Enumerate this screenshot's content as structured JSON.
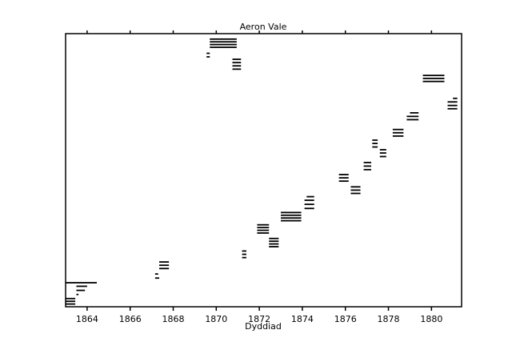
{
  "chart_data": {
    "type": "broken-barh",
    "title": "Aeron Vale",
    "xlabel": "Dyddiad",
    "xlim": [
      1863.0,
      1881.4
    ],
    "ylim": [
      0,
      100
    ],
    "xticks": [
      1864,
      1866,
      1868,
      1870,
      1872,
      1874,
      1876,
      1878,
      1880
    ],
    "color": "#000000",
    "starts": [
      1863.0,
      1863.0,
      1863.0,
      1863.0,
      1863.5,
      1863.5,
      1863.5,
      1867.16,
      1867.16,
      1867.35,
      1867.35,
      1867.35,
      1871.2,
      1871.2,
      1871.2,
      1871.9,
      1871.9,
      1871.9,
      1871.9,
      1872.45,
      1872.45,
      1872.45,
      1872.45,
      1873.0,
      1873.0,
      1873.0,
      1873.0,
      1874.1,
      1874.1,
      1874.1,
      1874.2,
      1875.7,
      1875.7,
      1875.7,
      1876.25,
      1876.25,
      1876.25,
      1876.85,
      1876.85,
      1876.85,
      1877.25,
      1877.25,
      1877.25,
      1877.6,
      1877.6,
      1877.6,
      1878.2,
      1878.2,
      1878.2,
      1878.85,
      1878.85,
      1879.0,
      1879.6,
      1879.6,
      1879.6,
      1880.75,
      1880.75,
      1880.75,
      1881.0,
      1869.7,
      1869.7,
      1869.7,
      1869.7,
      1869.55,
      1869.55,
      1870.75,
      1870.75,
      1870.75,
      1870.75
    ],
    "ends": [
      1863.45,
      1863.45,
      1863.45,
      1864.45,
      1864.0,
      1863.9,
      1863.6,
      1867.35,
      1867.3,
      1867.8,
      1867.8,
      1867.8,
      1871.4,
      1871.4,
      1871.4,
      1872.45,
      1872.45,
      1872.45,
      1872.45,
      1872.9,
      1872.9,
      1872.9,
      1872.9,
      1873.95,
      1873.95,
      1873.95,
      1873.95,
      1874.55,
      1874.55,
      1874.55,
      1874.55,
      1876.15,
      1876.15,
      1876.15,
      1876.7,
      1876.7,
      1876.7,
      1877.2,
      1877.2,
      1877.2,
      1877.5,
      1877.5,
      1877.5,
      1877.9,
      1877.9,
      1877.9,
      1878.7,
      1878.7,
      1878.7,
      1879.4,
      1879.4,
      1879.4,
      1880.6,
      1880.6,
      1880.6,
      1881.2,
      1881.2,
      1881.2,
      1881.2,
      1870.95,
      1870.95,
      1870.95,
      1870.95,
      1869.7,
      1869.7,
      1871.15,
      1871.15,
      1871.15,
      1871.15
    ],
    "y": [
      1,
      2,
      3,
      8.8,
      7.5,
      6,
      4.5,
      10.5,
      12,
      14,
      15.2,
      16.4,
      18,
      19.2,
      20.4,
      27,
      28,
      29,
      30,
      22,
      23,
      24,
      25,
      31.5,
      32.5,
      33.5,
      34.5,
      36,
      37.5,
      39,
      40.3,
      46,
      47.2,
      48.4,
      41.5,
      42.7,
      43.9,
      50.2,
      51.5,
      52.8,
      58.5,
      59.8,
      61,
      55,
      56.3,
      57.5,
      62.5,
      63.7,
      64.9,
      68.5,
      69.7,
      71,
      82.5,
      83.6,
      84.7,
      72.5,
      73.7,
      75,
      76.3,
      95,
      96,
      97,
      98,
      91.5,
      92.8,
      87,
      88.2,
      89.4,
      90.6
    ]
  }
}
